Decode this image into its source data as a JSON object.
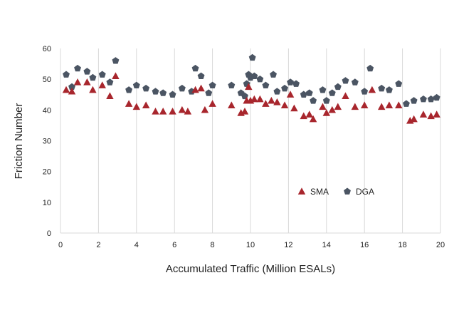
{
  "chart_data": {
    "type": "scatter",
    "xlabel": "Accumulated Traffic (Million ESALs)",
    "ylabel": "Friction Number",
    "xlim": [
      0,
      20
    ],
    "ylim": [
      0,
      60
    ],
    "x_ticks": [
      0,
      2,
      4,
      6,
      8,
      10,
      12,
      14,
      16,
      18,
      20
    ],
    "y_ticks": [
      0,
      10,
      20,
      30,
      40,
      50,
      60
    ],
    "grid": "vertical",
    "legend_position": "inside-lower-right",
    "series": [
      {
        "name": "SMA",
        "marker": "triangle",
        "color": "#a8262d",
        "points": [
          [
            0.3,
            46.5
          ],
          [
            0.6,
            46.0
          ],
          [
            0.9,
            49.0
          ],
          [
            1.4,
            49.0
          ],
          [
            1.7,
            46.5
          ],
          [
            2.2,
            48.0
          ],
          [
            2.6,
            44.5
          ],
          [
            2.9,
            51.0
          ],
          [
            3.6,
            42.0
          ],
          [
            4.0,
            41.0
          ],
          [
            4.5,
            41.5
          ],
          [
            5.0,
            39.5
          ],
          [
            5.4,
            39.5
          ],
          [
            5.9,
            39.5
          ],
          [
            6.4,
            40.0
          ],
          [
            6.7,
            39.5
          ],
          [
            7.1,
            46.5
          ],
          [
            7.4,
            47.0
          ],
          [
            7.6,
            40.0
          ],
          [
            8.0,
            42.0
          ],
          [
            9.0,
            41.5
          ],
          [
            9.5,
            39.0
          ],
          [
            9.7,
            39.5
          ],
          [
            9.8,
            43.0
          ],
          [
            9.9,
            47.5
          ],
          [
            10.0,
            43.0
          ],
          [
            10.2,
            43.5
          ],
          [
            10.5,
            43.5
          ],
          [
            10.8,
            42.0
          ],
          [
            11.1,
            43.0
          ],
          [
            11.4,
            42.5
          ],
          [
            11.8,
            41.5
          ],
          [
            12.1,
            45.0
          ],
          [
            12.3,
            40.5
          ],
          [
            12.8,
            38.0
          ],
          [
            13.1,
            38.5
          ],
          [
            13.3,
            37.0
          ],
          [
            13.8,
            41.0
          ],
          [
            14.0,
            39.0
          ],
          [
            14.3,
            40.0
          ],
          [
            14.6,
            41.0
          ],
          [
            15.0,
            44.5
          ],
          [
            15.5,
            41.0
          ],
          [
            16.0,
            41.5
          ],
          [
            16.4,
            46.5
          ],
          [
            16.9,
            41.0
          ],
          [
            17.3,
            41.5
          ],
          [
            17.8,
            41.5
          ],
          [
            18.4,
            36.5
          ],
          [
            18.6,
            37.0
          ],
          [
            19.1,
            38.5
          ],
          [
            19.5,
            38.0
          ],
          [
            19.8,
            38.5
          ]
        ]
      },
      {
        "name": "DGA",
        "marker": "pentagon",
        "color": "#4b5563",
        "points": [
          [
            0.3,
            51.5
          ],
          [
            0.6,
            47.5
          ],
          [
            0.9,
            53.5
          ],
          [
            1.4,
            52.5
          ],
          [
            1.7,
            50.5
          ],
          [
            2.2,
            51.5
          ],
          [
            2.6,
            49.0
          ],
          [
            2.9,
            56.0
          ],
          [
            3.6,
            46.5
          ],
          [
            4.0,
            48.0
          ],
          [
            4.5,
            47.0
          ],
          [
            5.0,
            46.0
          ],
          [
            5.4,
            45.5
          ],
          [
            5.9,
            45.0
          ],
          [
            6.4,
            47.0
          ],
          [
            6.9,
            46.0
          ],
          [
            7.1,
            53.5
          ],
          [
            7.4,
            51.0
          ],
          [
            7.8,
            45.5
          ],
          [
            8.0,
            48.0
          ],
          [
            9.0,
            48.0
          ],
          [
            9.5,
            45.5
          ],
          [
            9.7,
            44.5
          ],
          [
            9.8,
            48.5
          ],
          [
            9.9,
            51.5
          ],
          [
            10.0,
            50.5
          ],
          [
            10.1,
            57.0
          ],
          [
            10.2,
            51.0
          ],
          [
            10.5,
            50.0
          ],
          [
            10.8,
            48.0
          ],
          [
            11.2,
            51.5
          ],
          [
            11.4,
            46.0
          ],
          [
            11.8,
            47.0
          ],
          [
            12.1,
            49.0
          ],
          [
            12.4,
            48.5
          ],
          [
            12.8,
            45.0
          ],
          [
            13.1,
            45.5
          ],
          [
            13.3,
            43.0
          ],
          [
            13.8,
            46.5
          ],
          [
            14.0,
            43.0
          ],
          [
            14.3,
            45.5
          ],
          [
            14.6,
            47.5
          ],
          [
            15.0,
            49.5
          ],
          [
            15.5,
            49.0
          ],
          [
            16.0,
            46.0
          ],
          [
            16.3,
            53.5
          ],
          [
            16.9,
            47.0
          ],
          [
            17.3,
            46.5
          ],
          [
            17.8,
            48.5
          ],
          [
            18.2,
            42.0
          ],
          [
            18.6,
            43.0
          ],
          [
            19.1,
            43.5
          ],
          [
            19.5,
            43.5
          ],
          [
            19.8,
            44.0
          ]
        ]
      }
    ]
  }
}
